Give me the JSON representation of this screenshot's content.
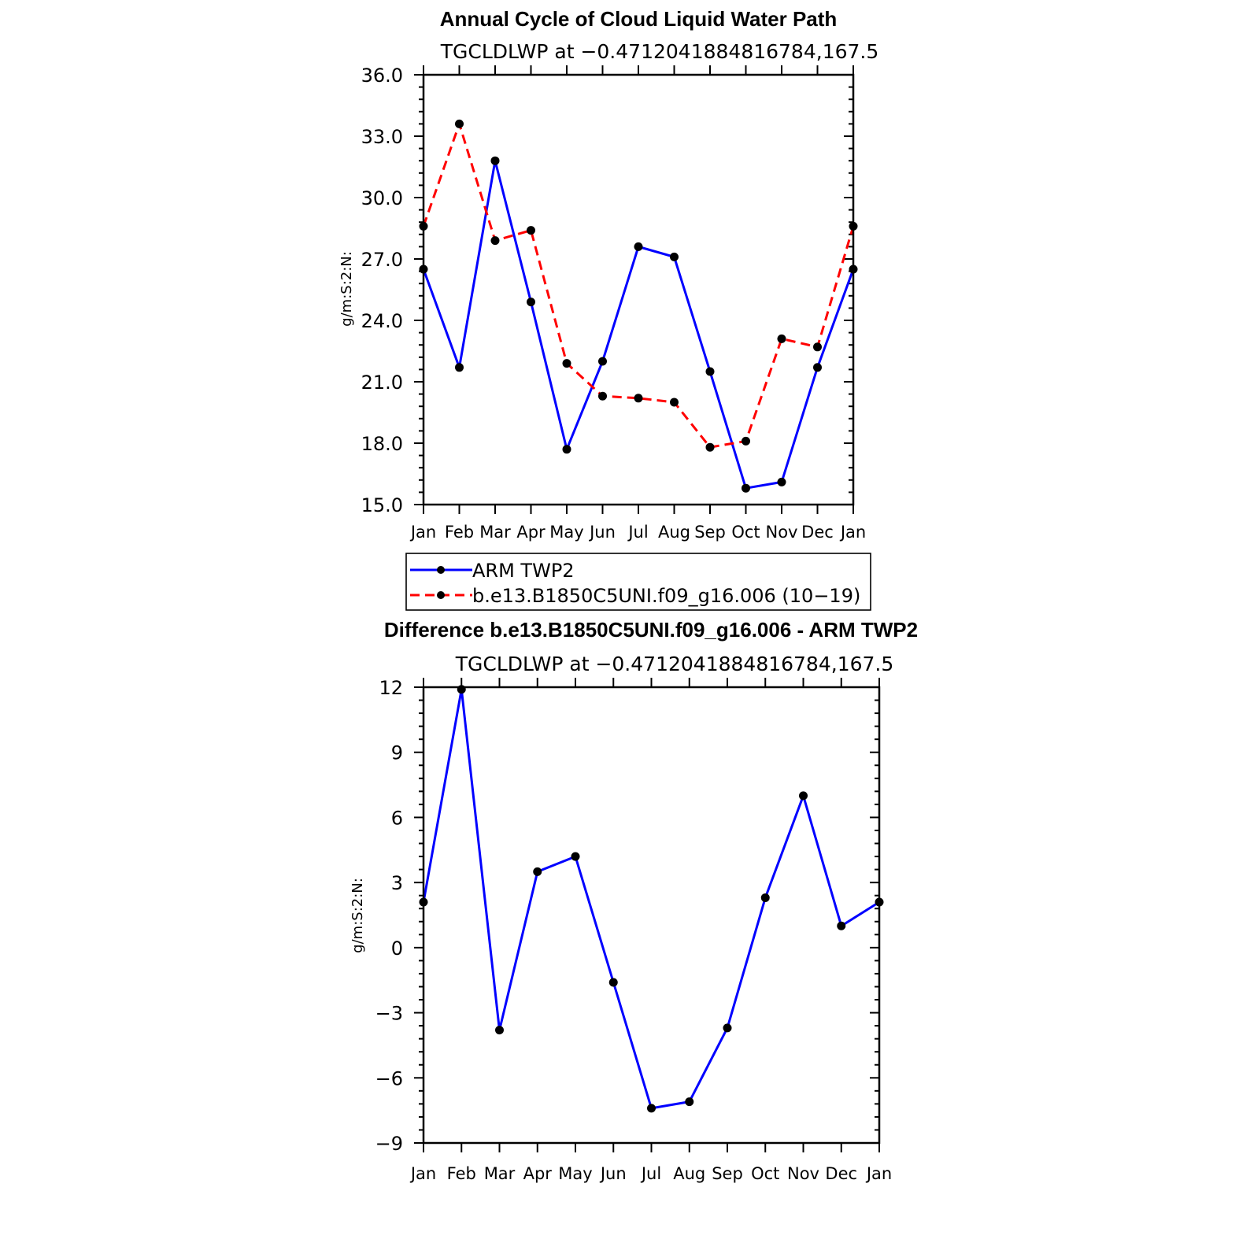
{
  "chart_data": [
    {
      "type": "line",
      "title": "Annual Cycle of Cloud Liquid Water Path",
      "subtitle": "TGCLDLWP  at  −0.4712041884816784,167.5",
      "xlabel": "",
      "ylabel": "g/m:S:2:N:",
      "categories": [
        "Jan",
        "Feb",
        "Mar",
        "Apr",
        "May",
        "Jun",
        "Jul",
        "Aug",
        "Sep",
        "Oct",
        "Nov",
        "Dec",
        "Jan"
      ],
      "ylim": [
        15.0,
        36.0
      ],
      "yticks": [
        "15.0",
        "18.0",
        "21.0",
        "24.0",
        "27.0",
        "30.0",
        "33.0",
        "36.0"
      ],
      "ytick_values": [
        15,
        18,
        21,
        24,
        27,
        30,
        33,
        36
      ],
      "series": [
        {
          "name": "ARM TWP2",
          "color": "#0000ff",
          "dash": "solid",
          "values": [
            26.5,
            21.7,
            31.8,
            24.9,
            17.7,
            22.0,
            27.6,
            27.1,
            21.5,
            15.8,
            16.1,
            21.7,
            26.5
          ]
        },
        {
          "name": "b.e13.B1850C5UNI.f09_g16.006 (10−19)",
          "color": "#ff0000",
          "dash": "dashed",
          "values": [
            28.6,
            33.6,
            27.9,
            28.4,
            21.9,
            20.3,
            20.2,
            20.0,
            17.8,
            18.1,
            23.1,
            22.7,
            28.6
          ]
        }
      ],
      "legend": "below"
    },
    {
      "type": "line",
      "title": "Difference b.e13.B1850C5UNI.f09_g16.006 - ARM TWP2",
      "subtitle": "TGCLDLWP  at  −0.4712041884816784,167.5",
      "xlabel": "",
      "ylabel": "g/m:S:2:N:",
      "categories": [
        "Jan",
        "Feb",
        "Mar",
        "Apr",
        "May",
        "Jun",
        "Jul",
        "Aug",
        "Sep",
        "Oct",
        "Nov",
        "Dec",
        "Jan"
      ],
      "ylim": [
        -9,
        12
      ],
      "yticks": [
        "−9",
        "−6",
        "−3",
        "0",
        "3",
        "6",
        "9",
        "12"
      ],
      "ytick_values": [
        -9,
        -6,
        -3,
        0,
        3,
        6,
        9,
        12
      ],
      "series": [
        {
          "color": "#0000ff",
          "dash": "solid",
          "values": [
            2.1,
            11.9,
            -3.8,
            3.5,
            4.2,
            -1.6,
            -7.4,
            -7.1,
            -3.7,
            2.3,
            7.0,
            1.0,
            2.1
          ]
        }
      ]
    }
  ]
}
